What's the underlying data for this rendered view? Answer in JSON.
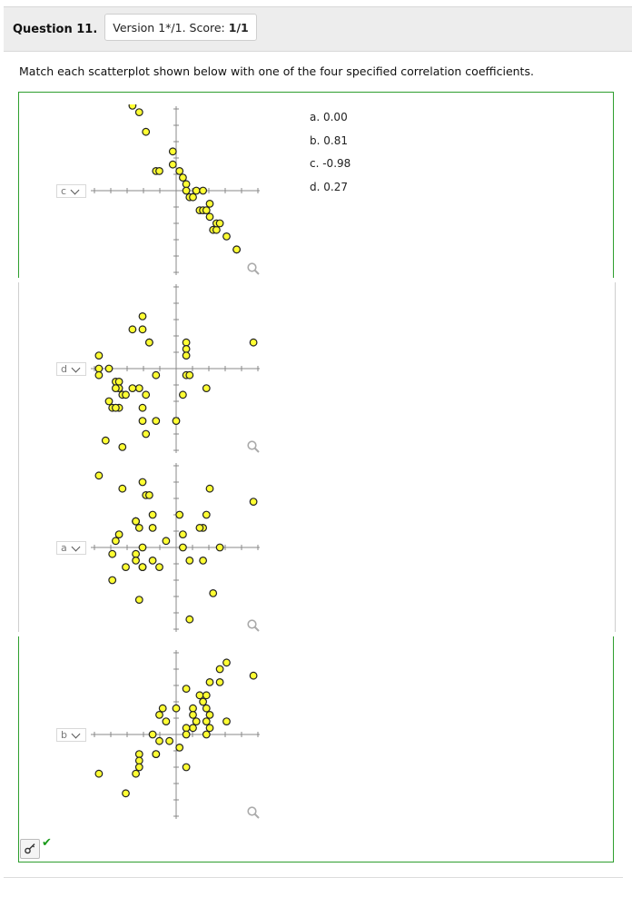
{
  "question": {
    "number_label": "Question 11.",
    "version_label": "Version 1*/1. Score:",
    "score": "1/1"
  },
  "prompt": "Match each scatterplot shown below with one of the four specified correlation coefficients.",
  "choices": [
    "a. 0.00",
    "b. 0.81",
    "c. -0.98",
    "d. 0.27"
  ],
  "plots": [
    {
      "selected": "c",
      "points": [
        [
          -2.3,
          2.4
        ],
        [
          -1.3,
          1.3
        ],
        [
          -1.1,
          1.2
        ],
        [
          -0.9,
          0.9
        ],
        [
          -0.6,
          0.3
        ],
        [
          -0.5,
          0.3
        ],
        [
          -0.1,
          0.6
        ],
        [
          -0.1,
          0.4
        ],
        [
          0.1,
          0.3
        ],
        [
          0.2,
          0.2
        ],
        [
          0.3,
          0.1
        ],
        [
          0.3,
          0.0
        ],
        [
          0.4,
          -0.1
        ],
        [
          0.5,
          -0.1
        ],
        [
          0.6,
          0.0
        ],
        [
          0.7,
          -0.3
        ],
        [
          0.8,
          -0.3
        ],
        [
          0.8,
          0.0
        ],
        [
          0.9,
          -0.3
        ],
        [
          1.0,
          -0.2
        ],
        [
          1.0,
          -0.4
        ],
        [
          1.1,
          -0.6
        ],
        [
          1.2,
          -0.6
        ],
        [
          1.2,
          -0.5
        ],
        [
          1.3,
          -0.5
        ],
        [
          1.5,
          -0.7
        ],
        [
          1.8,
          -0.9
        ],
        [
          1.8,
          -0.9
        ],
        [
          2.3,
          -1.4
        ]
      ]
    },
    {
      "selected": "d",
      "points": [
        [
          -0.7,
          1.4
        ],
        [
          -1.0,
          0.8
        ],
        [
          -1.3,
          0.6
        ],
        [
          -1.0,
          0.6
        ],
        [
          -0.8,
          0.4
        ],
        [
          -0.8,
          0.4
        ],
        [
          0.3,
          0.4
        ],
        [
          0.3,
          0.3
        ],
        [
          0.3,
          0.2
        ],
        [
          2.3,
          0.4
        ],
        [
          -2.3,
          0.2
        ],
        [
          -2.3,
          0.0
        ],
        [
          -2.0,
          0.0
        ],
        [
          -0.6,
          -0.1
        ],
        [
          0.3,
          -0.1
        ],
        [
          0.4,
          -0.1
        ],
        [
          -2.3,
          -0.1
        ],
        [
          -1.8,
          -0.2
        ],
        [
          -1.7,
          -0.2
        ],
        [
          -1.1,
          -0.3
        ],
        [
          -1.3,
          -0.3
        ],
        [
          -1.7,
          -0.3
        ],
        [
          -1.8,
          -0.3
        ],
        [
          -0.9,
          -0.4
        ],
        [
          0.9,
          -0.3
        ],
        [
          0.2,
          -0.4
        ],
        [
          -2.0,
          -0.5
        ],
        [
          -1.6,
          -0.4
        ],
        [
          -1.5,
          -0.4
        ],
        [
          -1.9,
          -0.6
        ],
        [
          -1.7,
          -0.6
        ],
        [
          -1.8,
          -0.6
        ],
        [
          -1.0,
          -0.6
        ],
        [
          -1.0,
          -0.8
        ],
        [
          -0.6,
          -0.8
        ],
        [
          0.0,
          -0.8
        ],
        [
          -0.9,
          -1.0
        ],
        [
          -2.1,
          -1.1
        ],
        [
          -1.6,
          -1.2
        ]
      ]
    },
    {
      "selected": "a",
      "points": [
        [
          -2.3,
          1.1
        ],
        [
          -1.6,
          0.9
        ],
        [
          -1.0,
          1.0
        ],
        [
          2.3,
          0.7
        ],
        [
          1.0,
          0.9
        ],
        [
          -0.9,
          0.8
        ],
        [
          -0.8,
          0.8
        ],
        [
          -1.2,
          0.4
        ],
        [
          -1.2,
          0.4
        ],
        [
          -0.7,
          0.5
        ],
        [
          -1.2,
          0.4
        ],
        [
          -1.1,
          0.3
        ],
        [
          0.1,
          0.5
        ],
        [
          0.9,
          0.5
        ],
        [
          0.8,
          0.3
        ],
        [
          0.7,
          0.3
        ],
        [
          -0.7,
          0.3
        ],
        [
          0.2,
          0.2
        ],
        [
          -1.7,
          0.2
        ],
        [
          -1.8,
          0.1
        ],
        [
          -0.3,
          0.1
        ],
        [
          0.2,
          0.0
        ],
        [
          1.3,
          0.0
        ],
        [
          -1.0,
          0.0
        ],
        [
          -1.9,
          -0.1
        ],
        [
          -1.2,
          -0.1
        ],
        [
          -1.2,
          -0.2
        ],
        [
          -0.7,
          -0.2
        ],
        [
          -1.0,
          -0.3
        ],
        [
          -1.5,
          -0.3
        ],
        [
          0.4,
          -0.2
        ],
        [
          0.8,
          -0.2
        ],
        [
          -1.0,
          -0.3
        ],
        [
          -0.5,
          -0.3
        ],
        [
          -1.9,
          -0.5
        ],
        [
          1.1,
          -0.7
        ],
        [
          -1.1,
          -0.8
        ],
        [
          0.4,
          -1.1
        ]
      ]
    },
    {
      "selected": "b",
      "points": [
        [
          1.5,
          1.1
        ],
        [
          1.3,
          1.0
        ],
        [
          2.3,
          0.9
        ],
        [
          1.0,
          0.8
        ],
        [
          1.3,
          0.8
        ],
        [
          0.3,
          0.7
        ],
        [
          0.7,
          0.6
        ],
        [
          0.8,
          0.5
        ],
        [
          0.9,
          0.6
        ],
        [
          0.5,
          0.4
        ],
        [
          -0.4,
          0.4
        ],
        [
          0.0,
          0.4
        ],
        [
          0.9,
          0.4
        ],
        [
          0.5,
          0.3
        ],
        [
          1.0,
          0.3
        ],
        [
          -0.5,
          0.3
        ],
        [
          -0.3,
          0.2
        ],
        [
          0.9,
          0.2
        ],
        [
          0.6,
          0.2
        ],
        [
          1.5,
          0.2
        ],
        [
          0.5,
          0.1
        ],
        [
          1.0,
          0.1
        ],
        [
          0.3,
          0.1
        ],
        [
          -0.7,
          0.0
        ],
        [
          0.3,
          0.0
        ],
        [
          0.9,
          0.0
        ],
        [
          -0.5,
          -0.1
        ],
        [
          -0.2,
          -0.1
        ],
        [
          0.1,
          -0.2
        ],
        [
          -0.6,
          -0.3
        ],
        [
          -0.6,
          -0.3
        ],
        [
          -1.1,
          -0.3
        ],
        [
          -1.1,
          -0.4
        ],
        [
          -1.1,
          -0.5
        ],
        [
          0.3,
          -0.5
        ],
        [
          -1.2,
          -0.6
        ],
        [
          -2.3,
          -0.6
        ],
        [
          -1.5,
          -0.9
        ]
      ]
    }
  ],
  "colors": {
    "border": "#2e9e2e",
    "point_fill": "#ffff33",
    "point_stroke": "#222222",
    "axis": "#888888"
  },
  "icons": {
    "zoom": "magnifier-icon",
    "key": "key-icon",
    "check": "checkmark-icon",
    "chevron": "chevron-down-icon"
  }
}
